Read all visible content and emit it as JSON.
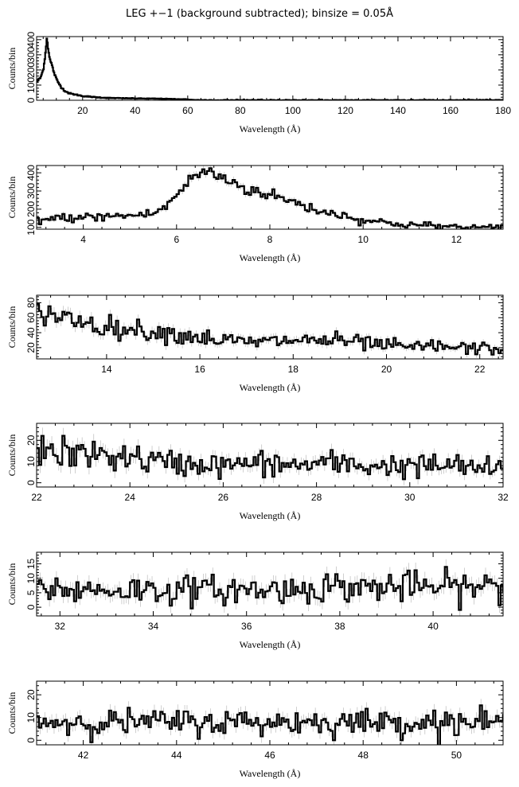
{
  "title": "LEG +−1 (background subtracted); binsize = 0.05Å",
  "chart_data": [
    {
      "type": "line",
      "xlabel": "Wavelength (Å)",
      "ylabel": "Counts/bin",
      "xlim": [
        2.5,
        180
      ],
      "ylim": [
        0,
        420
      ],
      "xticks": [
        20,
        40,
        60,
        80,
        100,
        120,
        140,
        160,
        180
      ],
      "yticks": [
        0,
        100,
        200,
        300,
        400
      ],
      "series": [
        {
          "x": [
            2.5,
            4,
            5,
            5.5,
            6,
            6.3,
            6.6,
            7,
            7.5,
            8,
            9,
            10,
            11,
            12,
            13,
            15,
            18,
            20,
            25,
            30,
            40,
            50,
            60,
            62,
            70,
            100,
            180
          ],
          "y": [
            120,
            150,
            200,
            260,
            330,
            410,
            390,
            330,
            270,
            250,
            190,
            140,
            110,
            85,
            65,
            45,
            35,
            28,
            20,
            15,
            12,
            10,
            6,
            2,
            0,
            0,
            0
          ]
        }
      ]
    },
    {
      "type": "line",
      "xlabel": "Wavelength (Å)",
      "ylabel": "Counts/bin",
      "xlim": [
        3,
        13
      ],
      "ylim": [
        90,
        440
      ],
      "xticks": [
        4,
        6,
        8,
        10,
        12
      ],
      "yticks": [
        100,
        200,
        300,
        400
      ],
      "series": [
        {
          "x": [
            3,
            3.5,
            4,
            4.5,
            5,
            5.5,
            5.8,
            6,
            6.2,
            6.4,
            6.6,
            6.8,
            7,
            7.2,
            7.5,
            8,
            8.5,
            9,
            9.5,
            10,
            10.5,
            11,
            11.5,
            12,
            12.5,
            13
          ],
          "y": [
            140,
            150,
            155,
            160,
            165,
            175,
            220,
            280,
            330,
            390,
            405,
            395,
            370,
            350,
            310,
            280,
            240,
            195,
            170,
            140,
            125,
            115,
            108,
            102,
            98,
            95
          ]
        }
      ]
    },
    {
      "type": "line",
      "xlabel": "Wavelength (Å)",
      "ylabel": "Counts/bin",
      "xlim": [
        12.5,
        22.5
      ],
      "ylim": [
        5,
        90
      ],
      "xticks": [
        14,
        16,
        18,
        20,
        22
      ],
      "yticks": [
        20,
        40,
        60,
        80
      ],
      "series": [
        {
          "x": [
            12.5,
            13,
            13.5,
            14,
            14.5,
            15,
            15.5,
            16,
            16.5,
            17,
            17.5,
            18,
            18.5,
            19,
            19.5,
            20,
            20.5,
            21,
            21.5,
            22,
            22.5
          ],
          "y": [
            70,
            62,
            55,
            48,
            44,
            42,
            38,
            34,
            30,
            27,
            28,
            30,
            30,
            29,
            26,
            23,
            20,
            22,
            20,
            19,
            18
          ]
        }
      ]
    },
    {
      "type": "line",
      "xlabel": "Wavelength (Å)",
      "ylabel": "Counts/bin",
      "xlim": [
        22,
        32
      ],
      "ylim": [
        -2,
        28
      ],
      "xticks": [
        22,
        24,
        26,
        28,
        30,
        32
      ],
      "yticks": [
        0,
        10,
        20
      ],
      "series": [
        {
          "x": [
            22,
            22.5,
            23,
            23.5,
            24,
            24.5,
            25,
            25.5,
            26,
            26.5,
            27,
            27.5,
            28,
            28.5,
            29,
            29.5,
            30,
            30.5,
            31,
            31.5,
            32
          ],
          "y": [
            15,
            14,
            13,
            13,
            12,
            10,
            9,
            9,
            8,
            9,
            9,
            8,
            9,
            9,
            8,
            8,
            8,
            8,
            8,
            7,
            6
          ]
        }
      ]
    },
    {
      "type": "line",
      "xlabel": "Wavelength (Å)",
      "ylabel": "Counts/bin",
      "xlim": [
        31.5,
        41.5
      ],
      "ylim": [
        -3,
        19
      ],
      "xticks": [
        32,
        34,
        36,
        38,
        40
      ],
      "yticks": [
        0,
        5,
        10,
        15
      ],
      "series": [
        {
          "x": [
            31.5,
            32,
            32.5,
            33,
            33.5,
            34,
            34.5,
            35,
            35.5,
            36,
            36.5,
            37,
            37.5,
            38,
            38.5,
            39,
            39.5,
            40,
            40.5,
            41,
            41.5
          ],
          "y": [
            7,
            6,
            6,
            6,
            6,
            6,
            6,
            6,
            6,
            6,
            6,
            6,
            7,
            7,
            7,
            7,
            7,
            7,
            7,
            7,
            7
          ]
        }
      ]
    },
    {
      "type": "line",
      "xlabel": "Wavelength (Å)",
      "ylabel": "Counts/bin",
      "xlim": [
        41,
        51
      ],
      "ylim": [
        -2,
        26
      ],
      "xticks": [
        42,
        44,
        46,
        48,
        50
      ],
      "yticks": [
        0,
        10,
        20
      ],
      "series": [
        {
          "x": [
            41,
            41.5,
            42,
            42.5,
            43,
            43.5,
            44,
            44.5,
            45,
            45.5,
            46,
            46.5,
            47,
            47.5,
            48,
            48.5,
            49,
            49.5,
            50,
            50.5,
            51
          ],
          "y": [
            8,
            8,
            8,
            8,
            8,
            8,
            8,
            8,
            8,
            8,
            8,
            8,
            8,
            8,
            8,
            8,
            8,
            8,
            8,
            8,
            8
          ]
        }
      ]
    }
  ]
}
